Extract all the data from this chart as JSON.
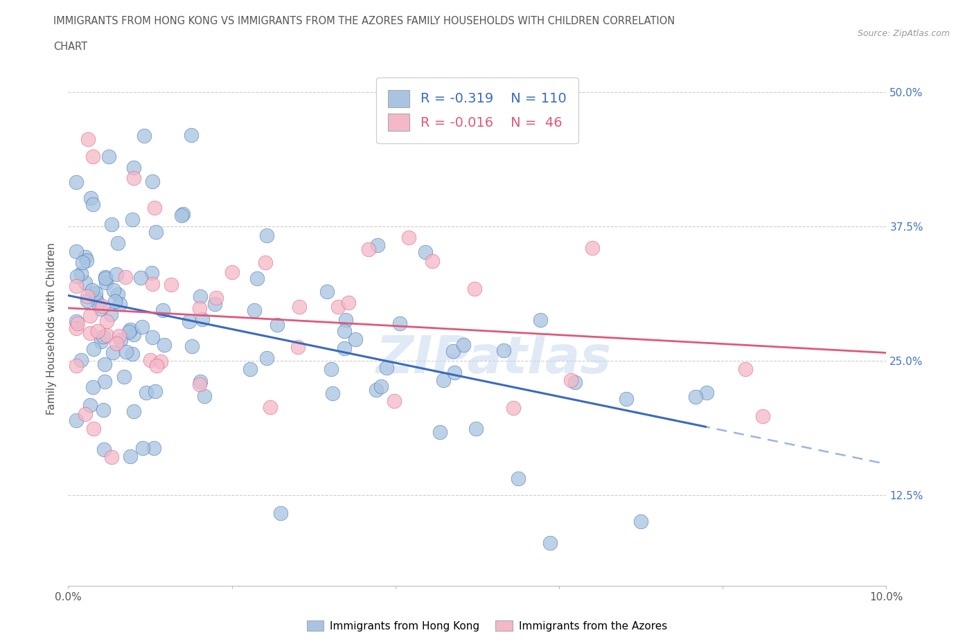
{
  "title_line1": "IMMIGRANTS FROM HONG KONG VS IMMIGRANTS FROM THE AZORES FAMILY HOUSEHOLDS WITH CHILDREN CORRELATION",
  "title_line2": "CHART",
  "source": "Source: ZipAtlas.com",
  "ylabel": "Family Households with Children",
  "xmin": 0.0,
  "xmax": 0.1,
  "ymin": 0.04,
  "ymax": 0.52,
  "yticks": [
    0.125,
    0.25,
    0.375,
    0.5
  ],
  "ytick_labels": [
    "12.5%",
    "25.0%",
    "37.5%",
    "50.0%"
  ],
  "xtick_positions": [
    0.0,
    0.02,
    0.04,
    0.06,
    0.08,
    0.1
  ],
  "xtick_labels": [
    "0.0%",
    "",
    "",
    "",
    "",
    "10.0%"
  ],
  "hk_color": "#a8c4e0",
  "az_color": "#f4b8c8",
  "hk_line_color": "#3a6abf",
  "az_line_color": "#e05878",
  "hk_R": -0.319,
  "hk_N": 110,
  "az_R": -0.016,
  "az_N": 46,
  "legend_label_hk": "Immigrants from Hong Kong",
  "legend_label_az": "Immigrants from the Azores",
  "watermark": "ZIPatlas",
  "background_color": "#ffffff",
  "title_color": "#555555",
  "ytick_color": "#4472c4",
  "xtick_color": "#555555"
}
